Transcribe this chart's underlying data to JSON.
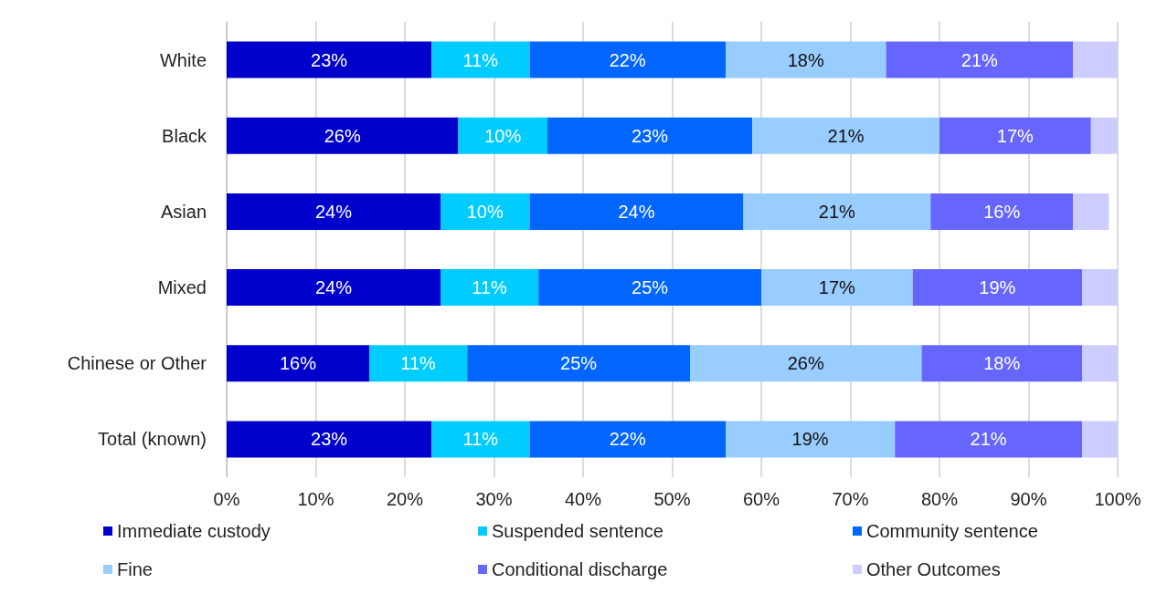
{
  "chart_data": {
    "type": "bar",
    "orientation": "horizontal",
    "stacked": true,
    "categories": [
      "White",
      "Black",
      "Asian",
      "Mixed",
      "Chinese or Other",
      "Total (known)"
    ],
    "series": [
      {
        "name": "Immediate custody",
        "color": "#0000cc",
        "values": [
          23,
          26,
          24,
          24,
          16,
          23
        ],
        "value_labels": [
          "23%",
          "26%",
          "24%",
          "24%",
          "16%",
          "23%"
        ]
      },
      {
        "name": "Suspended sentence",
        "color": "#00ccff",
        "values": [
          11,
          10,
          10,
          11,
          11,
          11
        ],
        "value_labels": [
          "11%",
          "10%",
          "10%",
          "11%",
          "11%",
          "11%"
        ]
      },
      {
        "name": "Community sentence",
        "color": "#0066ff",
        "values": [
          22,
          23,
          24,
          25,
          25,
          22
        ],
        "value_labels": [
          "22%",
          "23%",
          "24%",
          "25%",
          "25%",
          "22%"
        ]
      },
      {
        "name": "Fine",
        "color": "#99ccff",
        "values": [
          18,
          21,
          21,
          17,
          26,
          19
        ],
        "value_labels": [
          "18%",
          "21%",
          "21%",
          "17%",
          "26%",
          "19%"
        ]
      },
      {
        "name": "Conditional discharge",
        "color": "#6666ff",
        "values": [
          21,
          17,
          16,
          19,
          18,
          21
        ],
        "value_labels": [
          "21%",
          "17%",
          "16%",
          "19%",
          "18%",
          "21%"
        ]
      },
      {
        "name": "Other Outcomes",
        "color": "#ccccff",
        "values": [
          5,
          3,
          4,
          4,
          4,
          4
        ]
      }
    ],
    "xlim": [
      0,
      100
    ],
    "xticks": [
      {
        "value": 0,
        "label": "0%"
      },
      {
        "value": 10,
        "label": "10%"
      },
      {
        "value": 20,
        "label": "20%"
      },
      {
        "value": 30,
        "label": "30%"
      },
      {
        "value": 40,
        "label": "40%"
      },
      {
        "value": 50,
        "label": "50%"
      },
      {
        "value": 60,
        "label": "60%"
      },
      {
        "value": 70,
        "label": "70%"
      },
      {
        "value": 80,
        "label": "80%"
      },
      {
        "value": 90,
        "label": "90%"
      },
      {
        "value": 100,
        "label": "100%"
      }
    ],
    "grid": "x",
    "legend": "bottom"
  }
}
